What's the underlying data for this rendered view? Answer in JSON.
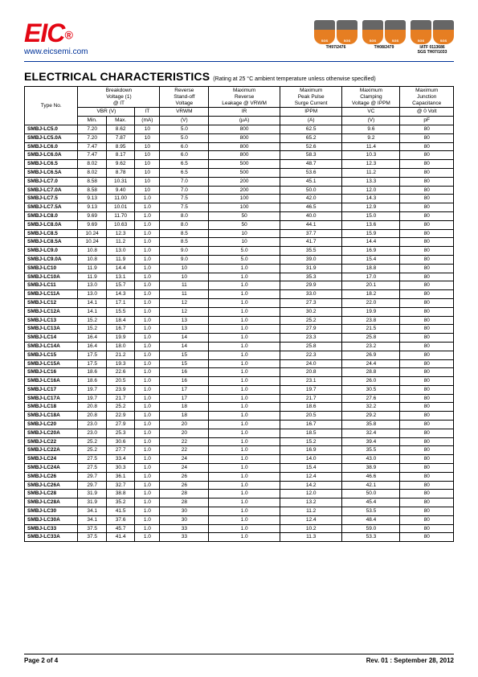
{
  "header": {
    "logo_text": "EIC",
    "reg_mark": "®",
    "url": "www.eicsemi.com",
    "badge_labels": [
      "TH97/2476",
      "TH08/2479",
      "IATF 0113686\nSGS TH07/1033"
    ]
  },
  "title": "ELECTRICAL CHARACTERISTICS",
  "subtitle": "(Rating at 25 °C ambient temperature unless otherwise specified)",
  "table": {
    "header_rows": {
      "group1": [
        "Type No.",
        "Breakdown\nVoltage (1)\n@ IT",
        "Reverse\nStand-off\nVoltage",
        "Maximum\nReverse\nLeakage @ VRWM",
        "Maximum\nPeak Pulse\nSurge Current",
        "Maximum\nClamping\nVoltage @ IPPM",
        "Maximum\nJunction\nCapacitance"
      ],
      "symbols": [
        "VBR  (V)",
        "IT",
        "VRWM",
        "IR",
        "IPPM",
        "VC",
        "@ 0 Volt"
      ],
      "units": [
        "Min.",
        "Max.",
        "(mA)",
        "(V)",
        "(µA)",
        "(A)",
        "(V)",
        "pF"
      ]
    },
    "rows": [
      {
        "t": "SMBJ-LC5.0",
        "min": "7.20",
        "max": "8.62",
        "it": "10",
        "vrwm": "5.0",
        "ir": "800",
        "ippm": "62.5",
        "vc": "9.6",
        "cap": "80"
      },
      {
        "t": "SMBJ-LC5.0A",
        "min": "7.20",
        "max": "7.87",
        "it": "10",
        "vrwm": "5.0",
        "ir": "800",
        "ippm": "65.2",
        "vc": "9.2",
        "cap": "80"
      },
      {
        "t": "SMBJ-LC6.0",
        "min": "7.47",
        "max": "8.95",
        "it": "10",
        "vrwm": "6.0",
        "ir": "800",
        "ippm": "52.6",
        "vc": "11.4",
        "cap": "80"
      },
      {
        "t": "SMBJ-LC6.0A",
        "min": "7.47",
        "max": "8.17",
        "it": "10",
        "vrwm": "6.0",
        "ir": "800",
        "ippm": "58.3",
        "vc": "10.3",
        "cap": "80"
      },
      {
        "t": "SMBJ-LC6.5",
        "min": "8.02",
        "max": "9.62",
        "it": "10",
        "vrwm": "6.5",
        "ir": "500",
        "ippm": "48.7",
        "vc": "12.3",
        "cap": "80"
      },
      {
        "t": "SMBJ-LC6.5A",
        "min": "8.02",
        "max": "8.78",
        "it": "10",
        "vrwm": "6.5",
        "ir": "500",
        "ippm": "53.6",
        "vc": "11.2",
        "cap": "80"
      },
      {
        "t": "SMBJ-LC7.0",
        "min": "8.58",
        "max": "10.31",
        "it": "10",
        "vrwm": "7.0",
        "ir": "200",
        "ippm": "45.1",
        "vc": "13.3",
        "cap": "80"
      },
      {
        "t": "SMBJ-LC7.0A",
        "min": "8.58",
        "max": "9.40",
        "it": "10",
        "vrwm": "7.0",
        "ir": "200",
        "ippm": "50.0",
        "vc": "12.0",
        "cap": "80"
      },
      {
        "t": "SMBJ-LC7.5",
        "min": "9.13",
        "max": "11.00",
        "it": "1.0",
        "vrwm": "7.5",
        "ir": "100",
        "ippm": "42.0",
        "vc": "14.3",
        "cap": "80"
      },
      {
        "t": "SMBJ-LC7.5A",
        "min": "9.13",
        "max": "10.01",
        "it": "1.0",
        "vrwm": "7.5",
        "ir": "100",
        "ippm": "46.5",
        "vc": "12.9",
        "cap": "80"
      },
      {
        "t": "SMBJ-LC8.0",
        "min": "9.69",
        "max": "11.70",
        "it": "1.0",
        "vrwm": "8.0",
        "ir": "50",
        "ippm": "40.0",
        "vc": "15.0",
        "cap": "80"
      },
      {
        "t": "SMBJ-LC8.0A",
        "min": "9.69",
        "max": "10.63",
        "it": "1.0",
        "vrwm": "8.0",
        "ir": "50",
        "ippm": "44.1",
        "vc": "13.6",
        "cap": "80"
      },
      {
        "t": "SMBJ-LC8.5",
        "min": "10.24",
        "max": "12.3",
        "it": "1.0",
        "vrwm": "8.5",
        "ir": "10",
        "ippm": "37.7",
        "vc": "15.9",
        "cap": "80"
      },
      {
        "t": "SMBJ-LC8.5A",
        "min": "10.24",
        "max": "11.2",
        "it": "1.0",
        "vrwm": "8.5",
        "ir": "10",
        "ippm": "41.7",
        "vc": "14.4",
        "cap": "80"
      },
      {
        "t": "SMBJ-LC9.0",
        "min": "10.8",
        "max": "13.0",
        "it": "1.0",
        "vrwm": "9.0",
        "ir": "5.0",
        "ippm": "35.5",
        "vc": "16.9",
        "cap": "80"
      },
      {
        "t": "SMBJ-LC9.0A",
        "min": "10.8",
        "max": "11.9",
        "it": "1.0",
        "vrwm": "9.0",
        "ir": "5.0",
        "ippm": "39.0",
        "vc": "15.4",
        "cap": "80"
      },
      {
        "t": "SMBJ-LC10",
        "min": "11.9",
        "max": "14.4",
        "it": "1.0",
        "vrwm": "10",
        "ir": "1.0",
        "ippm": "31.9",
        "vc": "18.8",
        "cap": "80"
      },
      {
        "t": "SMBJ-LC10A",
        "min": "11.9",
        "max": "13.1",
        "it": "1.0",
        "vrwm": "10",
        "ir": "1.0",
        "ippm": "35.3",
        "vc": "17.0",
        "cap": "80"
      },
      {
        "t": "SMBJ-LC11",
        "min": "13.0",
        "max": "15.7",
        "it": "1.0",
        "vrwm": "11",
        "ir": "1.0",
        "ippm": "29.9",
        "vc": "20.1",
        "cap": "80"
      },
      {
        "t": "SMBJ-LC11A",
        "min": "13.0",
        "max": "14.3",
        "it": "1.0",
        "vrwm": "11",
        "ir": "1.0",
        "ippm": "33.0",
        "vc": "18.2",
        "cap": "80"
      },
      {
        "t": "SMBJ-LC12",
        "min": "14.1",
        "max": "17.1",
        "it": "1.0",
        "vrwm": "12",
        "ir": "1.0",
        "ippm": "27.3",
        "vc": "22.0",
        "cap": "80"
      },
      {
        "t": "SMBJ-LC12A",
        "min": "14.1",
        "max": "15.5",
        "it": "1.0",
        "vrwm": "12",
        "ir": "1.0",
        "ippm": "30.2",
        "vc": "19.9",
        "cap": "80"
      },
      {
        "t": "SMBJ-LC13",
        "min": "15.2",
        "max": "18.4",
        "it": "1.0",
        "vrwm": "13",
        "ir": "1.0",
        "ippm": "25.2",
        "vc": "23.8",
        "cap": "80"
      },
      {
        "t": "SMBJ-LC13A",
        "min": "15.2",
        "max": "16.7",
        "it": "1.0",
        "vrwm": "13",
        "ir": "1.0",
        "ippm": "27.9",
        "vc": "21.5",
        "cap": "80"
      },
      {
        "t": "SMBJ-LC14",
        "min": "16.4",
        "max": "19.9",
        "it": "1.0",
        "vrwm": "14",
        "ir": "1.0",
        "ippm": "23.3",
        "vc": "25.8",
        "cap": "80"
      },
      {
        "t": "SMBJ-LC14A",
        "min": "16.4",
        "max": "18.0",
        "it": "1.0",
        "vrwm": "14",
        "ir": "1.0",
        "ippm": "25.8",
        "vc": "23.2",
        "cap": "80"
      },
      {
        "t": "SMBJ-LC15",
        "min": "17.5",
        "max": "21.2",
        "it": "1.0",
        "vrwm": "15",
        "ir": "1.0",
        "ippm": "22.3",
        "vc": "26.9",
        "cap": "80"
      },
      {
        "t": "SMBJ-LC15A",
        "min": "17.5",
        "max": "19.3",
        "it": "1.0",
        "vrwm": "15",
        "ir": "1.0",
        "ippm": "24.0",
        "vc": "24.4",
        "cap": "80"
      },
      {
        "t": "SMBJ-LC16",
        "min": "18.6",
        "max": "22.6",
        "it": "1.0",
        "vrwm": "16",
        "ir": "1.0",
        "ippm": "20.8",
        "vc": "28.8",
        "cap": "80"
      },
      {
        "t": "SMBJ-LC16A",
        "min": "18.6",
        "max": "20.5",
        "it": "1.0",
        "vrwm": "16",
        "ir": "1.0",
        "ippm": "23.1",
        "vc": "26.0",
        "cap": "80"
      },
      {
        "t": "SMBJ-LC17",
        "min": "19.7",
        "max": "23.9",
        "it": "1.0",
        "vrwm": "17",
        "ir": "1.0",
        "ippm": "19.7",
        "vc": "30.5",
        "cap": "80"
      },
      {
        "t": "SMBJ-LC17A",
        "min": "19.7",
        "max": "21.7",
        "it": "1.0",
        "vrwm": "17",
        "ir": "1.0",
        "ippm": "21.7",
        "vc": "27.6",
        "cap": "80"
      },
      {
        "t": "SMBJ-LC18",
        "min": "20.8",
        "max": "25.2",
        "it": "1.0",
        "vrwm": "18",
        "ir": "1.0",
        "ippm": "18.6",
        "vc": "32.2",
        "cap": "80"
      },
      {
        "t": "SMBJ-LC18A",
        "min": "20.8",
        "max": "22.9",
        "it": "1.0",
        "vrwm": "18",
        "ir": "1.0",
        "ippm": "20.5",
        "vc": "29.2",
        "cap": "80"
      },
      {
        "t": "SMBJ-LC20",
        "min": "23.0",
        "max": "27.9",
        "it": "1.0",
        "vrwm": "20",
        "ir": "1.0",
        "ippm": "16.7",
        "vc": "35.8",
        "cap": "80"
      },
      {
        "t": "SMBJ-LC20A",
        "min": "23.0",
        "max": "25.3",
        "it": "1.0",
        "vrwm": "20",
        "ir": "1.0",
        "ippm": "18.5",
        "vc": "32.4",
        "cap": "80"
      },
      {
        "t": "SMBJ-LC22",
        "min": "25.2",
        "max": "30.6",
        "it": "1.0",
        "vrwm": "22",
        "ir": "1.0",
        "ippm": "15.2",
        "vc": "39.4",
        "cap": "80"
      },
      {
        "t": "SMBJ-LC22A",
        "min": "25.2",
        "max": "27.7",
        "it": "1.0",
        "vrwm": "22",
        "ir": "1.0",
        "ippm": "16.9",
        "vc": "35.5",
        "cap": "80"
      },
      {
        "t": "SMBJ-LC24",
        "min": "27.5",
        "max": "33.4",
        "it": "1.0",
        "vrwm": "24",
        "ir": "1.0",
        "ippm": "14.0",
        "vc": "43.0",
        "cap": "80"
      },
      {
        "t": "SMBJ-LC24A",
        "min": "27.5",
        "max": "30.3",
        "it": "1.0",
        "vrwm": "24",
        "ir": "1.0",
        "ippm": "15.4",
        "vc": "38.9",
        "cap": "80"
      },
      {
        "t": "SMBJ-LC26",
        "min": "29.7",
        "max": "36.1",
        "it": "1.0",
        "vrwm": "26",
        "ir": "1.0",
        "ippm": "12.4",
        "vc": "46.6",
        "cap": "80"
      },
      {
        "t": "SMBJ-LC26A",
        "min": "29.7",
        "max": "32.7",
        "it": "1.0",
        "vrwm": "26",
        "ir": "1.0",
        "ippm": "14.2",
        "vc": "42.1",
        "cap": "80"
      },
      {
        "t": "SMBJ-LC28",
        "min": "31.9",
        "max": "38.8",
        "it": "1.0",
        "vrwm": "28",
        "ir": "1.0",
        "ippm": "12.0",
        "vc": "50.0",
        "cap": "80"
      },
      {
        "t": "SMBJ-LC28A",
        "min": "31.9",
        "max": "35.2",
        "it": "1.0",
        "vrwm": "28",
        "ir": "1.0",
        "ippm": "13.2",
        "vc": "45.4",
        "cap": "80"
      },
      {
        "t": "SMBJ-LC30",
        "min": "34.1",
        "max": "41.5",
        "it": "1.0",
        "vrwm": "30",
        "ir": "1.0",
        "ippm": "11.2",
        "vc": "53.5",
        "cap": "80"
      },
      {
        "t": "SMBJ-LC30A",
        "min": "34.1",
        "max": "37.6",
        "it": "1.0",
        "vrwm": "30",
        "ir": "1.0",
        "ippm": "12.4",
        "vc": "48.4",
        "cap": "80"
      },
      {
        "t": "SMBJ-LC33",
        "min": "37.5",
        "max": "45.7",
        "it": "1.0",
        "vrwm": "33",
        "ir": "1.0",
        "ippm": "10.2",
        "vc": "59.0",
        "cap": "80"
      },
      {
        "t": "SMBJ-LC33A",
        "min": "37.5",
        "max": "41.4",
        "it": "1.0",
        "vrwm": "33",
        "ir": "1.0",
        "ippm": "11.3",
        "vc": "53.3",
        "cap": "80"
      }
    ]
  },
  "footer": {
    "left": "Page 2 of 4",
    "right": "Rev. 01 : September 28, 2012"
  }
}
